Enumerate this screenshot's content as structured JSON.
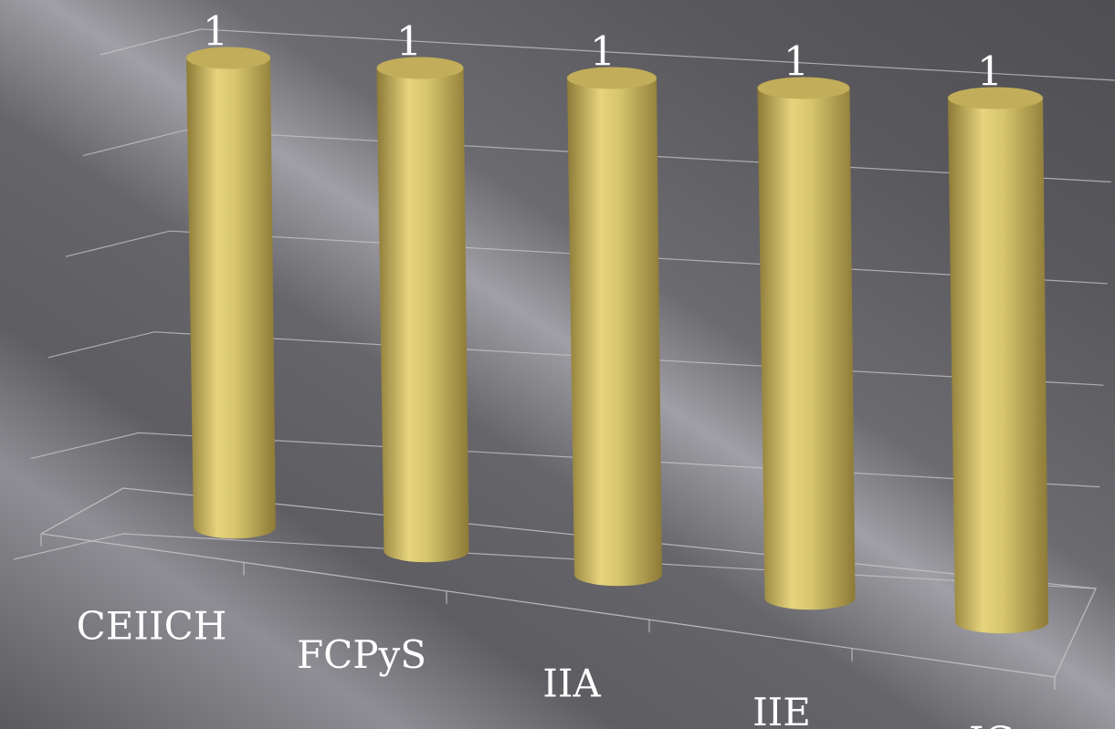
{
  "chart_data": {
    "type": "bar",
    "shape": "3d-cylinder",
    "categories": [
      "CEIICH",
      "FCPyS",
      "IIA",
      "IIE",
      "IG"
    ],
    "values": [
      1,
      1,
      1,
      1,
      1
    ],
    "data_labels": [
      "1",
      "1",
      "1",
      "1",
      "1"
    ],
    "ylim": [
      0,
      1
    ],
    "grid": true,
    "legend": "none",
    "colors": {
      "bar": "#d6c56c",
      "bar_light": "#e6d47d",
      "bar_dark": "#8c7a37",
      "bar_top": "#c2ad5a",
      "background": "#5d5c61",
      "background_light": "#a8a7ad",
      "gridline": "#c8c8cc",
      "text": "#ffffff"
    }
  }
}
